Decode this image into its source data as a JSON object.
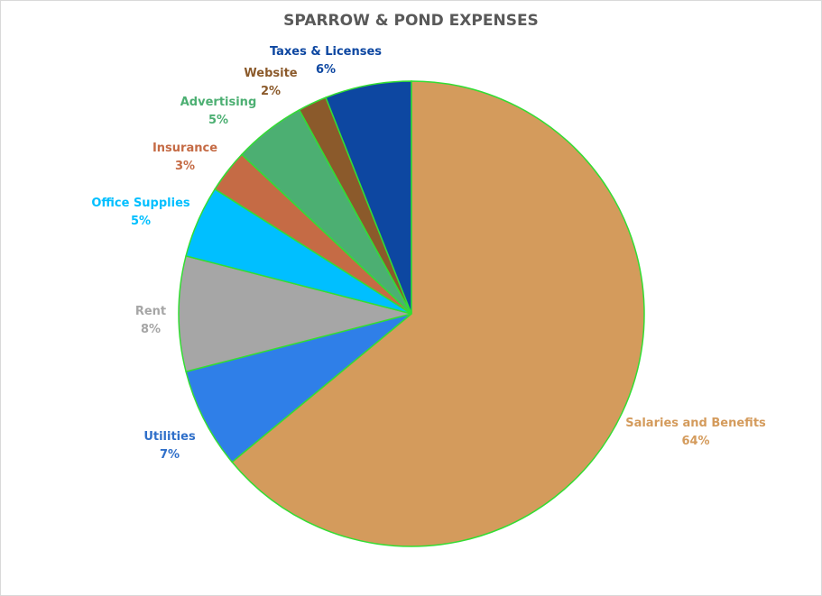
{
  "chart_data": {
    "type": "pie",
    "title": "SPARROW & POND EXPENSES",
    "slices": [
      {
        "label": "Salaries and Benefits",
        "value": 64,
        "value_label": "64%",
        "color": "#d49b5c",
        "label_color": "#d49b5c"
      },
      {
        "label": "Utilities",
        "value": 7,
        "value_label": "7%",
        "color": "#2f7fe8",
        "label_color": "#2f6fc9"
      },
      {
        "label": "Rent",
        "value": 8,
        "value_label": "8%",
        "color": "#a6a6a6",
        "label_color": "#a6a6a6"
      },
      {
        "label": "Office Supplies",
        "value": 5,
        "value_label": "5%",
        "color": "#00bfff",
        "label_color": "#00bfff"
      },
      {
        "label": "Insurance",
        "value": 3,
        "value_label": "3%",
        "color": "#c56b45",
        "label_color": "#c56b45"
      },
      {
        "label": "Advertising",
        "value": 5,
        "value_label": "5%",
        "color": "#4caf72",
        "label_color": "#4caf72"
      },
      {
        "label": "Website",
        "value": 2,
        "value_label": "2%",
        "color": "#8b5a2b",
        "label_color": "#8b5a2b"
      },
      {
        "label": "Taxes & Licenses",
        "value": 6,
        "value_label": "6%",
        "color": "#0d47a1",
        "label_color": "#0d47a1"
      }
    ],
    "start": "top",
    "direction": "clockwise",
    "slice_border_color": "#33dd33",
    "legend": "none"
  }
}
